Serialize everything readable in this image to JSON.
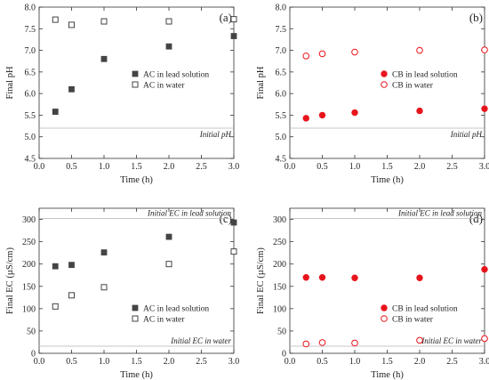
{
  "chart_data": [
    {
      "panel": "(a)",
      "type": "scatter",
      "xlabel": "Time (h)",
      "ylabel": "Final pH",
      "xlim": [
        0.0,
        3.0
      ],
      "ylim": [
        4.5,
        8.0
      ],
      "xticks": [
        "0.0",
        "0.5",
        "1.0",
        "1.5",
        "2.0",
        "2.5",
        "3.0"
      ],
      "yticks": [
        "4.5",
        "5.0",
        "5.5",
        "6.0",
        "6.5",
        "7.0",
        "7.5",
        "8.0"
      ],
      "reference_lines": [
        {
          "y": 5.2,
          "label": "Initial pH",
          "label_pos": "below-right"
        }
      ],
      "legend_position": "middle-right",
      "series": [
        {
          "name": "AC in lead solution",
          "marker": "filled-square",
          "color": "#444444",
          "x": [
            0.25,
            0.5,
            1.0,
            2.0,
            3.0
          ],
          "y": [
            5.58,
            6.1,
            6.8,
            7.09,
            7.33
          ],
          "err": [
            0.06,
            0.05,
            0.03,
            0.03,
            0.03
          ]
        },
        {
          "name": "AC in water",
          "marker": "open-square",
          "color": "#444444",
          "x": [
            0.25,
            0.5,
            1.0,
            2.0,
            3.0
          ],
          "y": [
            7.71,
            7.59,
            7.67,
            7.67,
            7.72
          ],
          "err": [
            0.05,
            0.04,
            0.04,
            0.05,
            0.04
          ]
        }
      ]
    },
    {
      "panel": "(b)",
      "type": "scatter",
      "xlabel": "Time (h)",
      "ylabel": "Final pH",
      "xlim": [
        0.0,
        3.0
      ],
      "ylim": [
        4.5,
        8.0
      ],
      "xticks": [
        "0.0",
        "0.5",
        "1.0",
        "1.5",
        "2.0",
        "2.5",
        "3.0"
      ],
      "yticks": [
        "4.5",
        "5.0",
        "5.5",
        "6.0",
        "6.5",
        "7.0",
        "7.5",
        "8.0"
      ],
      "reference_lines": [
        {
          "y": 5.2,
          "label": "Initial pH",
          "label_pos": "below-right"
        }
      ],
      "legend_position": "middle-right",
      "series": [
        {
          "name": "CB in lead solution",
          "marker": "filled-circle",
          "color": "#e8141c",
          "x": [
            0.25,
            0.5,
            1.0,
            2.0,
            3.0
          ],
          "y": [
            5.43,
            5.5,
            5.56,
            5.6,
            5.65
          ],
          "err": [
            0,
            0,
            0,
            0,
            0
          ]
        },
        {
          "name": "CB in water",
          "marker": "open-circle",
          "color": "#e8141c",
          "x": [
            0.25,
            0.5,
            1.0,
            2.0,
            3.0
          ],
          "y": [
            6.87,
            6.92,
            6.96,
            7.0,
            7.01
          ],
          "err": [
            0,
            0,
            0,
            0,
            0
          ]
        }
      ]
    },
    {
      "panel": "(c)",
      "type": "scatter",
      "xlabel": "Time (h)",
      "ylabel": "Final EC (µS/cm)",
      "xlim": [
        0.0,
        3.0
      ],
      "ylim": [
        0,
        325
      ],
      "xticks": [
        "0.0",
        "0.5",
        "1.0",
        "1.5",
        "2.0",
        "2.5",
        "3.0"
      ],
      "yticks": [
        "0",
        "50",
        "100",
        "150",
        "200",
        "250",
        "300"
      ],
      "reference_lines": [
        {
          "y": 302,
          "label": "Initial EC in lead solution",
          "label_pos": "above-right"
        },
        {
          "y": 16,
          "label": "Initial EC in water",
          "label_pos": "above-right"
        }
      ],
      "legend_position": "lower-right",
      "series": [
        {
          "name": "AC in lead solution",
          "marker": "filled-square",
          "color": "#444444",
          "x": [
            0.25,
            0.5,
            1.0,
            2.0,
            3.0
          ],
          "y": [
            195,
            198,
            226,
            261,
            293
          ],
          "err": [
            0,
            0,
            0,
            0,
            0
          ]
        },
        {
          "name": "AC in water",
          "marker": "open-square",
          "color": "#444444",
          "x": [
            0.25,
            0.5,
            1.0,
            2.0,
            3.0
          ],
          "y": [
            105,
            130,
            148,
            200,
            228
          ],
          "err": [
            0,
            0,
            0,
            0,
            0
          ]
        }
      ]
    },
    {
      "panel": "(d)",
      "type": "scatter",
      "xlabel": "Time (h)",
      "ylabel": "Final EC (µS/cm)",
      "xlim": [
        0.0,
        3.0
      ],
      "ylim": [
        0,
        325
      ],
      "xticks": [
        "0.0",
        "0.5",
        "1.0",
        "1.5",
        "2.0",
        "2.5",
        "3.0"
      ],
      "yticks": [
        "0",
        "50",
        "100",
        "150",
        "200",
        "250",
        "300"
      ],
      "reference_lines": [
        {
          "y": 302,
          "label": "Initial EC in lead solution",
          "label_pos": "above-right"
        },
        {
          "y": 16,
          "label": "Initial EC in water",
          "label_pos": "above-right"
        }
      ],
      "legend_position": "lower-right",
      "series": [
        {
          "name": "CB in lead solution",
          "marker": "filled-circle",
          "color": "#e8141c",
          "x": [
            0.25,
            0.5,
            1.0,
            2.0,
            3.0
          ],
          "y": [
            170,
            170,
            169,
            169,
            188
          ],
          "err": [
            0,
            0,
            0,
            0,
            0
          ]
        },
        {
          "name": "CB in water",
          "marker": "open-circle",
          "color": "#e8141c",
          "x": [
            0.25,
            0.5,
            1.0,
            2.0,
            3.0
          ],
          "y": [
            21,
            24,
            23,
            29,
            33
          ],
          "err": [
            0,
            0,
            0,
            0,
            0
          ]
        }
      ]
    }
  ]
}
